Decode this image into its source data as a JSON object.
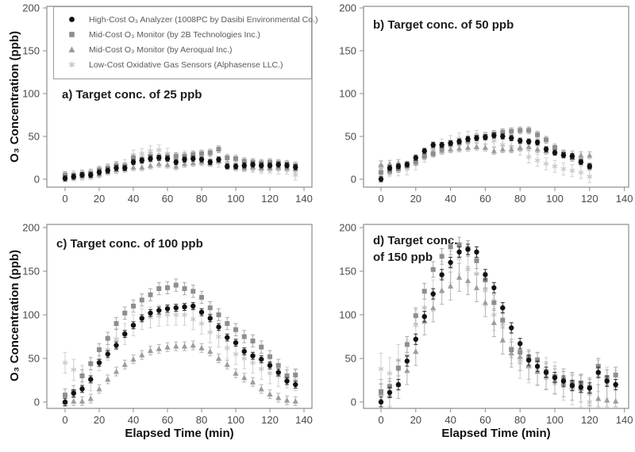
{
  "figure": {
    "y_axis_label": "O₃ Concentration (ppb)",
    "x_axis_label": "Elapsed Time (min)"
  },
  "legend": {
    "items": [
      {
        "symbol": "filled-circle",
        "label": "High-Cost O₃ Analyzer (1008PC by Dasibi Environmental Co.)"
      },
      {
        "symbol": "filled-square",
        "label": "Mid-Cost O₃ Monitor (by 2B Technologies Inc.)"
      },
      {
        "symbol": "filled-triangle",
        "label": "Mid-Cost O₃ Monitor (by Aeroqual Inc.)"
      },
      {
        "symbol": "star",
        "label": "Low-Cost Oxidative Gas Sensors (Alphasense LLC.)"
      }
    ]
  },
  "chart_meta": {
    "type": "scatter",
    "grid": false,
    "legend_position": "top-left-inside-subplot-a",
    "series_defs": [
      {
        "key": "high-cost-dasibi",
        "symbol": "circle",
        "color": "#111111",
        "err_color": "#2f2f2f",
        "label": "High-Cost O₃ Analyzer (1008PC by Dasibi Environmental Co.)"
      },
      {
        "key": "mid-cost-2b",
        "symbol": "square",
        "color": "#8e8e8e",
        "err_color": "#aaaaaa",
        "label": "Mid-Cost O₃ Monitor (by 2B Technologies Inc.)"
      },
      {
        "key": "mid-cost-aeroqual",
        "symbol": "triangle",
        "color": "#9c9c9c",
        "err_color": "#b4b4b4",
        "label": "Mid-Cost O₃ Monitor (by Aeroqual Inc.)"
      },
      {
        "key": "low-cost-alphasense",
        "symbol": "star",
        "color": "#c8c8c8",
        "err_color": "#cfcfcf",
        "label": "Low-Cost Oxidative Gas Sensors (Alphasense LLC.)"
      }
    ]
  },
  "chart_data": [
    {
      "id": "a",
      "type": "scatter",
      "title": "a) Target conc. of 25 ppb",
      "title_lines": [
        "a) Target conc. of 25 ppb"
      ],
      "xlabel": "Elapsed Time (min)",
      "ylabel": "O₃ Concentration (ppb)",
      "xlim": [
        0,
        140
      ],
      "ylim": [
        0,
        200
      ],
      "x_ticks": [
        0,
        20,
        40,
        60,
        80,
        100,
        120,
        140
      ],
      "y_ticks": [
        0,
        50,
        100,
        150,
        200
      ],
      "x": [
        0,
        5,
        10,
        15,
        20,
        25,
        30,
        35,
        40,
        45,
        50,
        55,
        60,
        65,
        70,
        75,
        80,
        85,
        90,
        95,
        100,
        105,
        110,
        115,
        120,
        125,
        130,
        135
      ],
      "series": [
        {
          "name": "high-cost-dasibi",
          "err": 3,
          "values": [
            1,
            3,
            5,
            5,
            8,
            10,
            13,
            13,
            20,
            22,
            24,
            25,
            24,
            20,
            23,
            24,
            23,
            20,
            23,
            15,
            15,
            16,
            17,
            16,
            16,
            17,
            16,
            14
          ]
        },
        {
          "name": "mid-cost-2b",
          "err": 4,
          "values": [
            5,
            4,
            6,
            7,
            11,
            13,
            16,
            15,
            25,
            23,
            27,
            26,
            26,
            27,
            27,
            29,
            30,
            31,
            35,
            25,
            24,
            21,
            20,
            19,
            20,
            19,
            18,
            16
          ]
        },
        {
          "name": "mid-cost-aeroqual",
          "err": 4,
          "values": [
            2,
            3,
            4,
            4,
            6,
            9,
            11,
            12,
            14,
            14,
            16,
            18,
            17,
            15,
            18,
            19,
            20,
            19,
            22,
            16,
            14,
            13,
            14,
            13,
            13,
            14,
            13,
            12
          ]
        },
        {
          "name": "low-cost-alphasense",
          "err": 6,
          "values": [
            3,
            4,
            5,
            6,
            9,
            12,
            15,
            17,
            28,
            30,
            33,
            34,
            30,
            25,
            27,
            25,
            24,
            22,
            20,
            18,
            16,
            15,
            14,
            13,
            13,
            12,
            12,
            5
          ]
        }
      ]
    },
    {
      "id": "b",
      "type": "scatter",
      "title": "b) Target conc. of 50 ppb",
      "title_lines": [
        "b) Target conc. of 50 ppb"
      ],
      "xlabel": "Elapsed Time (min)",
      "ylabel": "O₃ Concentration (ppb)",
      "xlim": [
        0,
        140
      ],
      "ylim": [
        0,
        200
      ],
      "x_ticks": [
        0,
        20,
        40,
        60,
        80,
        100,
        120,
        140
      ],
      "y_ticks": [
        0,
        50,
        100,
        150,
        200
      ],
      "x": [
        0,
        5,
        10,
        15,
        20,
        25,
        30,
        35,
        40,
        45,
        50,
        55,
        60,
        65,
        70,
        75,
        80,
        85,
        90,
        95,
        100,
        105,
        110,
        115,
        120
      ],
      "series": [
        {
          "name": "high-cost-dasibi",
          "err": 3,
          "values": [
            0,
            13,
            15,
            17,
            25,
            33,
            40,
            40,
            42,
            44,
            47,
            48,
            49,
            51,
            50,
            48,
            45,
            44,
            43,
            35,
            31,
            28,
            27,
            20,
            15
          ]
        },
        {
          "name": "mid-cost-2b",
          "err": 4,
          "values": [
            8,
            9,
            12,
            17,
            20,
            27,
            30,
            35,
            41,
            43,
            45,
            49,
            50,
            53,
            55,
            56,
            57,
            57,
            52,
            46,
            37,
            30,
            25,
            21,
            15
          ]
        },
        {
          "name": "mid-cost-aeroqual",
          "err": 4,
          "values": [
            17,
            18,
            19,
            16,
            22,
            28,
            31,
            33,
            35,
            36,
            37,
            38,
            37,
            33,
            35,
            35,
            37,
            38,
            35,
            33,
            32,
            30,
            29,
            28,
            28
          ]
        },
        {
          "name": "low-cost-alphasense",
          "err": 7,
          "values": [
            15,
            10,
            11,
            12,
            18,
            27,
            37,
            40,
            44,
            47,
            49,
            50,
            48,
            45,
            40,
            38,
            35,
            26,
            22,
            18,
            15,
            12,
            10,
            8,
            3
          ]
        }
      ]
    },
    {
      "id": "c",
      "type": "scatter",
      "title": "c) Target conc. of 100 ppb",
      "title_lines": [
        "c) Target conc. of 100 ppb"
      ],
      "xlabel": "Elapsed Time (min)",
      "ylabel": "O₃ Concentration (ppb)",
      "xlim": [
        0,
        140
      ],
      "ylim": [
        0,
        200
      ],
      "x_ticks": [
        0,
        20,
        40,
        60,
        80,
        100,
        120,
        140
      ],
      "y_ticks": [
        0,
        50,
        100,
        150,
        200
      ],
      "x": [
        0,
        5,
        10,
        15,
        20,
        25,
        30,
        35,
        40,
        45,
        50,
        55,
        60,
        65,
        70,
        75,
        80,
        85,
        90,
        95,
        100,
        105,
        110,
        115,
        120,
        125,
        130,
        135
      ],
      "series": [
        {
          "name": "high-cost-dasibi",
          "err": 4,
          "values": [
            0,
            10,
            15,
            26,
            45,
            55,
            65,
            78,
            88,
            96,
            102,
            105,
            107,
            108,
            109,
            110,
            103,
            96,
            86,
            74,
            68,
            58,
            53,
            49,
            42,
            34,
            24,
            20
          ]
        },
        {
          "name": "mid-cost-2b",
          "err": 7,
          "values": [
            8,
            12,
            30,
            44,
            60,
            73,
            90,
            102,
            110,
            117,
            123,
            130,
            131,
            134,
            130,
            127,
            120,
            108,
            100,
            90,
            83,
            75,
            70,
            63,
            52,
            42,
            30,
            31
          ]
        },
        {
          "name": "mid-cost-aeroqual",
          "err": 5,
          "values": [
            0,
            1,
            1,
            4,
            15,
            26,
            35,
            43,
            49,
            54,
            59,
            61,
            63,
            64,
            64,
            65,
            62,
            58,
            50,
            43,
            33,
            28,
            23,
            15,
            9,
            5,
            2,
            1
          ]
        },
        {
          "name": "low-cost-alphasense",
          "err": 12,
          "values": [
            45,
            37,
            30,
            25,
            48,
            60,
            72,
            78,
            88,
            95,
            97,
            99,
            100,
            100,
            100,
            95,
            90,
            80,
            75,
            62,
            55,
            50,
            45,
            38,
            33,
            30,
            28,
            25
          ]
        }
      ]
    },
    {
      "id": "d",
      "type": "scatter",
      "title": "d) Target conc. of 150 ppb",
      "title_lines": [
        "d) Target conc.",
        "of 150 ppb"
      ],
      "xlabel": "Elapsed Time (min)",
      "ylabel": "O₃ Concentration (ppb)",
      "xlim": [
        0,
        140
      ],
      "ylim": [
        0,
        200
      ],
      "x_ticks": [
        0,
        20,
        40,
        60,
        80,
        100,
        120,
        140
      ],
      "y_ticks": [
        0,
        50,
        100,
        150,
        200
      ],
      "x": [
        0,
        5,
        10,
        15,
        20,
        25,
        30,
        35,
        40,
        45,
        50,
        55,
        60,
        65,
        70,
        75,
        80,
        85,
        90,
        95,
        100,
        105,
        110,
        115,
        120,
        125,
        130,
        135
      ],
      "series": [
        {
          "name": "high-cost-dasibi",
          "err": 6,
          "values": [
            0,
            11,
            20,
            47,
            72,
            98,
            124,
            146,
            160,
            172,
            175,
            172,
            146,
            131,
            108,
            85,
            67,
            48,
            41,
            34,
            28,
            24,
            19,
            17,
            16,
            34,
            24,
            20
          ]
        },
        {
          "name": "mid-cost-2b",
          "err": 9,
          "values": [
            12,
            18,
            39,
            66,
            99,
            127,
            152,
            167,
            178,
            180,
            176,
            162,
            140,
            114,
            94,
            60,
            57,
            51,
            48,
            35,
            29,
            26,
            22,
            22,
            17,
            41,
            28,
            31
          ]
        },
        {
          "name": "mid-cost-aeroqual",
          "err": 16,
          "values": [
            10,
            8,
            20,
            36,
            58,
            93,
            108,
            128,
            133,
            143,
            139,
            131,
            114,
            91,
            71,
            56,
            52,
            42,
            35,
            30,
            25,
            22,
            18,
            16,
            12,
            4,
            2,
            1
          ]
        },
        {
          "name": "low-cost-alphasense",
          "err": 18,
          "values": [
            38,
            33,
            48,
            53,
            88,
            108,
            122,
            143,
            155,
            165,
            152,
            147,
            128,
            100,
            90,
            62,
            45,
            40,
            38,
            33,
            28,
            20,
            15,
            12,
            0,
            30,
            22,
            18
          ]
        }
      ]
    }
  ]
}
